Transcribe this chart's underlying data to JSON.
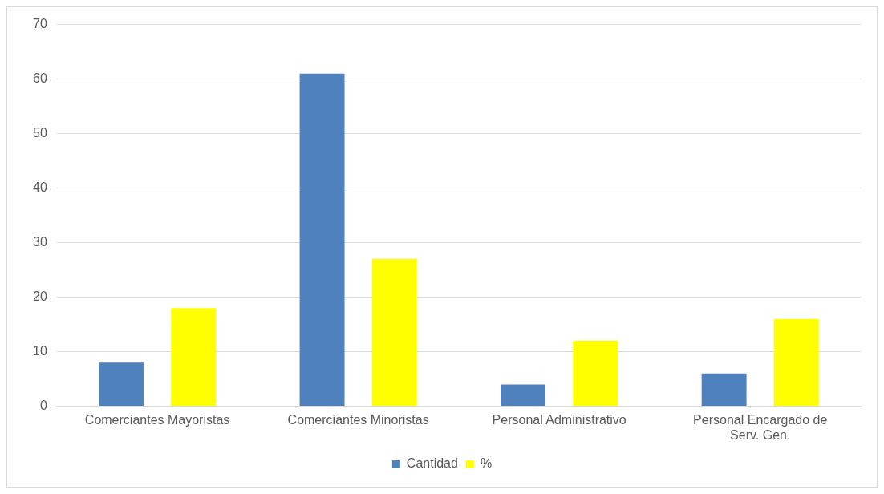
{
  "chart_data": {
    "type": "bar",
    "categories": [
      "Comerciantes Mayoristas",
      "Comerciantes Minoristas",
      "Personal Administrativo",
      "Personal Encargado de Serv. Gen."
    ],
    "series": [
      {
        "name": "Cantidad",
        "color": "#4f81bd",
        "values": [
          8,
          61,
          4,
          6
        ]
      },
      {
        "name": "%",
        "color": "#ffff00",
        "values": [
          18,
          27,
          12,
          16
        ]
      }
    ],
    "ylim": [
      0,
      70
    ],
    "yticks": [
      0,
      10,
      20,
      30,
      40,
      50,
      60,
      70
    ],
    "grid": "y",
    "legend": "bottom"
  }
}
